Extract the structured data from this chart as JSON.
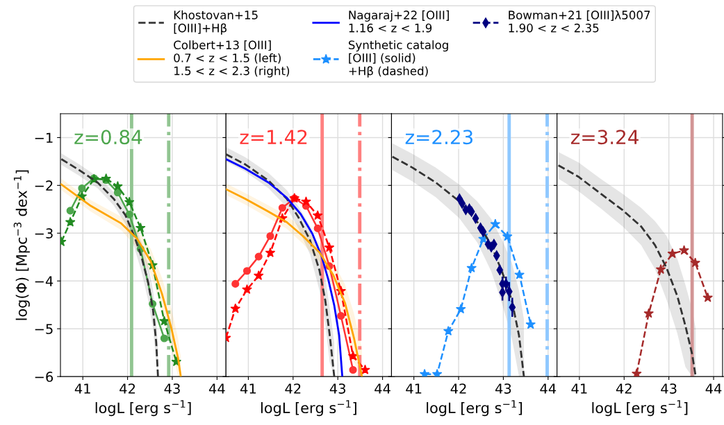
{
  "chart_data": [
    {
      "type": "line",
      "title": "z=0.84",
      "xlabel": "logL [erg s$^{−1}$]",
      "ylabel": "log(Φ) [Mpc$^{−3}$ dex$^{−1}$]",
      "xlim": [
        40.5,
        44.2
      ],
      "ylim": [
        -6,
        -0.5
      ],
      "xticks": [
        41,
        42,
        43,
        44
      ],
      "yticks": [
        -6,
        -5,
        -4,
        -3,
        -2,
        -1
      ],
      "grid": true,
      "legend": "top",
      "ref_lines": [
        {
          "axis": "x",
          "value": 42.09,
          "color": "#91c591",
          "line_style": "solid"
        },
        {
          "axis": "x",
          "value": 42.92,
          "color": "#91c591",
          "line_style": "dashdot"
        }
      ],
      "series": [
        {
          "color": "#4da64d",
          "line_style": "solid",
          "marker": "circle",
          "x": [
            40.72,
            40.98,
            41.25,
            41.52,
            41.78,
            42.04,
            42.29,
            42.56,
            42.82
          ],
          "values": [
            -2.53,
            -2.06,
            -1.85,
            -1.89,
            -2.15,
            -2.61,
            -3.33,
            -4.48,
            -5.2
          ]
        },
        {
          "color": "#228b22",
          "line_style": "dashed",
          "marker": "star",
          "x": [
            40.52,
            40.72,
            40.98,
            41.25,
            41.52,
            41.78,
            42.04,
            42.29,
            42.56,
            42.82,
            43.09
          ],
          "values": [
            -3.18,
            -2.77,
            -2.23,
            -1.87,
            -1.86,
            -2.02,
            -2.35,
            -2.89,
            -3.67,
            -4.84,
            -5.69
          ]
        },
        {
          "name": "Khostovan+15\n[OIII]+Hβ",
          "color": "#333333",
          "line_style": "dashed",
          "marker": "none",
          "x": [
            40.52,
            40.92,
            41.33,
            41.69,
            41.95,
            42.15,
            42.31,
            42.46,
            42.57,
            42.64,
            42.68
          ],
          "values": [
            -1.45,
            -1.68,
            -1.94,
            -2.28,
            -2.62,
            -3.06,
            -3.49,
            -4.03,
            -4.61,
            -5.28,
            -6.0
          ],
          "lower": [
            -1.57,
            -1.8,
            -2.06,
            -2.42,
            -2.8,
            -3.3,
            -3.8,
            -4.4,
            -5.0,
            -5.7,
            -6.0
          ],
          "upper": [
            -1.33,
            -1.56,
            -1.82,
            -2.14,
            -2.44,
            -2.82,
            -3.18,
            -3.66,
            -4.2,
            -4.8,
            -5.4
          ]
        },
        {
          "name": "Colbert+13 [OIII]\n0.7 < z < 1.5 (left)\n1.5 < z < 2.3 (right)",
          "color": "#ffa500",
          "line_style": "solid",
          "marker": "none",
          "x": [
            40.52,
            41.18,
            41.85,
            42.21,
            42.52,
            42.77,
            42.98,
            43.13,
            43.19
          ],
          "values": [
            -1.98,
            -2.43,
            -2.79,
            -3.11,
            -3.59,
            -4.27,
            -4.99,
            -5.62,
            -6.0
          ],
          "lower": [
            -2.1,
            -2.55,
            -2.93,
            -3.3,
            -3.85,
            -4.6,
            -5.4,
            -6.0,
            -6.0
          ],
          "upper": [
            -1.86,
            -2.31,
            -2.65,
            -2.92,
            -3.33,
            -3.94,
            -4.58,
            -5.2,
            -5.6
          ]
        }
      ]
    },
    {
      "type": "line",
      "title": "z=1.42",
      "xlabel": "logL [erg s$^{−1}$]",
      "xlim": [
        40.5,
        44.2
      ],
      "ylim": [
        -6,
        -0.5
      ],
      "xticks": [
        41,
        42,
        43,
        44
      ],
      "yticks": [
        -6,
        -5,
        -4,
        -3,
        -2,
        -1
      ],
      "grid": true,
      "tick_labels": "x",
      "legend": "top",
      "ref_lines": [
        {
          "axis": "x",
          "value": 42.65,
          "color": "#ff8080",
          "line_style": "solid"
        },
        {
          "axis": "x",
          "value": 43.49,
          "color": "#ff8080",
          "line_style": "dashdot"
        }
      ],
      "series": [
        {
          "color": "#ff3333",
          "line_style": "solid",
          "marker": "circle",
          "x": [
            40.71,
            40.97,
            41.23,
            41.49,
            41.76,
            42.03,
            42.29,
            42.55,
            42.81,
            43.07,
            43.34
          ],
          "values": [
            -4.06,
            -3.79,
            -3.49,
            -3.06,
            -2.47,
            -2.27,
            -2.43,
            -2.9,
            -3.69,
            -4.73,
            -5.86
          ]
        },
        {
          "color": "#ff0000",
          "line_style": "dashed",
          "marker": "star",
          "x": [
            40.5,
            40.71,
            40.97,
            41.23,
            41.49,
            41.76,
            42.03,
            42.29,
            42.55,
            42.81,
            43.07,
            43.34,
            43.61
          ],
          "values": [
            -5.19,
            -4.58,
            -4.18,
            -3.89,
            -3.41,
            -2.69,
            -2.27,
            -2.34,
            -2.63,
            -3.3,
            -4.21,
            -5.57,
            -5.86
          ]
        },
        {
          "color": "#333333",
          "line_style": "dashed",
          "marker": "none",
          "x": [
            40.5,
            40.93,
            41.45,
            41.86,
            42.12,
            42.38,
            42.59,
            42.72,
            42.82,
            42.92
          ],
          "values": [
            -1.35,
            -1.56,
            -1.9,
            -2.28,
            -2.67,
            -3.15,
            -3.78,
            -4.41,
            -5.14,
            -6.0
          ],
          "lower": [
            -1.5,
            -1.71,
            -2.06,
            -2.46,
            -2.9,
            -3.45,
            -4.2,
            -4.9,
            -5.7,
            -6.0
          ],
          "upper": [
            -1.2,
            -1.41,
            -1.74,
            -2.1,
            -2.44,
            -2.85,
            -3.36,
            -3.92,
            -4.58,
            -5.3
          ]
        },
        {
          "name": "Nagaraj+22 [OIII]\n1.16 < z < 1.9",
          "color": "#0000ff",
          "line_style": "solid",
          "marker": "none",
          "x": [
            40.5,
            40.93,
            41.45,
            41.86,
            42.17,
            42.43,
            42.64,
            42.79,
            42.92,
            43.03,
            43.1
          ],
          "values": [
            -1.45,
            -1.65,
            -1.94,
            -2.26,
            -2.6,
            -3.01,
            -3.49,
            -3.98,
            -4.51,
            -5.14,
            -6.0
          ]
        },
        {
          "color": "#ffa500",
          "line_style": "solid",
          "marker": "none",
          "x": [
            40.5,
            40.93,
            41.45,
            41.86,
            42.22,
            42.59,
            42.9,
            43.16,
            43.36,
            43.54
          ],
          "values": [
            -2.08,
            -2.28,
            -2.55,
            -2.77,
            -3.06,
            -3.4,
            -3.88,
            -4.46,
            -5.19,
            -6.0
          ],
          "lower": [
            -2.2,
            -2.4,
            -2.68,
            -2.91,
            -3.22,
            -3.6,
            -4.15,
            -4.85,
            -5.7,
            -6.0
          ],
          "upper": [
            -1.96,
            -2.16,
            -2.42,
            -2.63,
            -2.9,
            -3.2,
            -3.61,
            -4.07,
            -4.68,
            -5.4
          ]
        }
      ]
    },
    {
      "type": "line",
      "title": "z=2.23",
      "xlabel": "logL [erg s$^{−1}$]",
      "xlim": [
        40.5,
        44.2
      ],
      "ylim": [
        -6,
        -0.5
      ],
      "xticks": [
        41,
        42,
        43,
        44
      ],
      "yticks": [
        -6,
        -5,
        -4,
        -3,
        -2,
        -1
      ],
      "grid": true,
      "tick_labels": "x",
      "legend": "top",
      "ref_lines": [
        {
          "axis": "x",
          "value": 43.13,
          "color": "#8fc8ff",
          "line_style": "solid"
        },
        {
          "axis": "x",
          "value": 43.98,
          "color": "#8fc8ff",
          "line_style": "dashdot"
        }
      ],
      "series": [
        {
          "name": "Synthetic catalog\n[OIII] (solid)\n+Hβ (dashed)",
          "color": "#1e90ff",
          "line_style": "dashed",
          "marker": "star",
          "x": [
            41.24,
            41.52,
            41.77,
            42.05,
            42.29,
            42.55,
            42.82,
            43.09,
            43.36,
            43.61
          ],
          "values": [
            -5.95,
            -5.95,
            -5.05,
            -4.59,
            -3.73,
            -3.12,
            -2.81,
            -3.07,
            -3.87,
            -4.91
          ]
        },
        {
          "color": "#333333",
          "line_style": "dashed",
          "marker": "none",
          "x": [
            40.52,
            40.97,
            41.49,
            42.01,
            42.42,
            42.73,
            42.98,
            43.19,
            43.35,
            43.46
          ],
          "values": [
            -1.4,
            -1.63,
            -1.94,
            -2.33,
            -2.77,
            -3.25,
            -3.83,
            -4.41,
            -5.14,
            -6.0
          ],
          "lower": [
            -1.68,
            -1.92,
            -2.25,
            -2.68,
            -3.2,
            -3.8,
            -4.5,
            -5.2,
            -6.0,
            -6.0
          ],
          "upper": [
            -1.12,
            -1.34,
            -1.63,
            -1.98,
            -2.34,
            -2.7,
            -3.16,
            -3.62,
            -4.2,
            -4.8
          ]
        },
        {
          "name": "Bowman+21 [OIII]λ5007\n1.90 < z < 2.35",
          "type": "scatter",
          "color": "#000080",
          "line_style": "dashed",
          "marker": "diamond",
          "x": [
            42.02,
            42.08,
            42.16,
            42.24,
            42.29,
            42.38,
            42.49,
            42.55,
            42.66,
            42.73,
            42.79,
            42.85,
            42.92,
            42.98,
            42.98,
            43.06,
            43.13,
            43.2
          ],
          "values": [
            -2.28,
            -2.38,
            -2.51,
            -2.49,
            -2.55,
            -2.69,
            -2.89,
            -2.97,
            -3.23,
            -3.29,
            -3.23,
            -3.47,
            -3.77,
            -4.06,
            -4.24,
            -4.06,
            -4.22,
            -4.55
          ],
          "errors": [
            0.04,
            0.04,
            0.04,
            0.04,
            0.05,
            0.05,
            0.05,
            0.06,
            0.06,
            0.07,
            0.07,
            0.08,
            0.1,
            0.15,
            0.17,
            0.15,
            0.2,
            0.2
          ]
        }
      ]
    },
    {
      "type": "line",
      "title": "z=3.24",
      "xlabel": "logL [erg s$^{−1}$]",
      "xlim": [
        40.5,
        44.2
      ],
      "ylim": [
        -6,
        -0.5
      ],
      "xticks": [
        41,
        42,
        43,
        44
      ],
      "yticks": [
        -6,
        -5,
        -4,
        -3,
        -2,
        -1
      ],
      "grid": true,
      "tick_labels": "x",
      "ref_lines": [
        {
          "axis": "x",
          "value": 43.52,
          "color": "#d29595",
          "line_style": "solid"
        }
      ],
      "series": [
        {
          "color": "#a52a2a",
          "line_style": "dashed",
          "marker": "star",
          "x": [
            42.28,
            42.55,
            42.82,
            43.08,
            43.34,
            43.59,
            43.87
          ],
          "values": [
            -5.94,
            -4.68,
            -3.76,
            -3.43,
            -3.36,
            -3.62,
            -4.35
          ]
        },
        {
          "color": "#333333",
          "line_style": "dashed",
          "marker": "none",
          "x": [
            40.53,
            40.98,
            41.5,
            41.97,
            42.38,
            42.69,
            42.95,
            43.19,
            43.37,
            43.52,
            43.6
          ],
          "values": [
            -1.58,
            -1.82,
            -2.19,
            -2.52,
            -2.86,
            -3.25,
            -3.73,
            -4.32,
            -4.94,
            -5.53,
            -6.0
          ],
          "lower": [
            -1.86,
            -2.12,
            -2.5,
            -2.86,
            -3.25,
            -3.75,
            -4.4,
            -5.1,
            -5.8,
            -6.0,
            -6.0
          ],
          "upper": [
            -1.3,
            -1.52,
            -1.88,
            -2.18,
            -2.47,
            -2.75,
            -3.06,
            -3.54,
            -4.08,
            -4.6,
            -5.0
          ]
        }
      ]
    }
  ]
}
